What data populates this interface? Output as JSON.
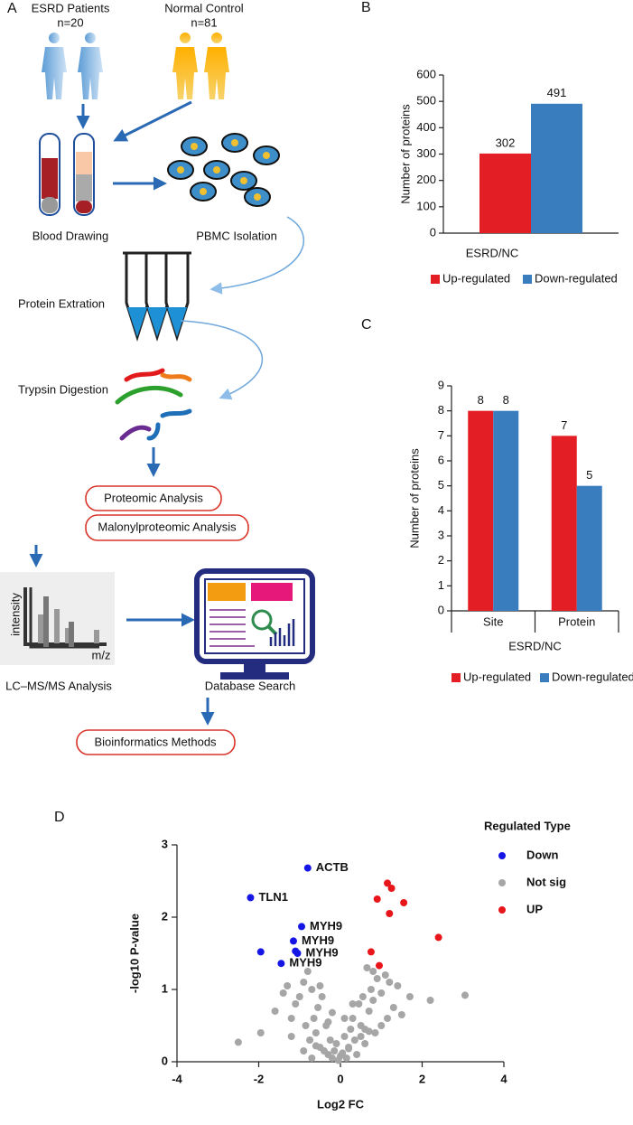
{
  "panel_labels": [
    "A",
    "B",
    "C",
    "D"
  ],
  "workflow": {
    "patients": "ESRD Patients",
    "patients_n": "n=20",
    "controls": "Normal Control",
    "controls_n": "n=81",
    "blood": "Blood Drawing",
    "pbmc": "PBMC Isolation",
    "extraction": "Protein Extration",
    "trypsin": "Trypsin Digestion",
    "proteomic": "Proteomic Analysis",
    "malonyl": "Malonylproteomic Analysis",
    "intensity": "intensity",
    "mz": "m/z",
    "lcms": "LC–MS/MS Analysis",
    "database": "Database Search",
    "bioinformatics": "Bioinformatics Methods"
  },
  "chart_data": [
    {
      "type": "bar",
      "ylabel": "Number of proteins",
      "categories": [
        "ESRD/NC"
      ],
      "series": [
        {
          "name": "Up-regulated",
          "color": "#e31e24",
          "values": [
            302
          ]
        },
        {
          "name": "Down-regulated",
          "color": "#3a7dbf",
          "values": [
            491
          ]
        }
      ],
      "ylim": [
        0,
        600
      ],
      "yticks": [
        0,
        100,
        200,
        300,
        400,
        500,
        600
      ]
    },
    {
      "type": "bar",
      "ylabel": "Number of proteins",
      "xlabel": "ESRD/NC",
      "categories": [
        "Site",
        "Protein"
      ],
      "series": [
        {
          "name": "Up-regulated",
          "color": "#e31e24",
          "values": [
            8,
            7
          ]
        },
        {
          "name": "Down-regulated",
          "color": "#3a7dbf",
          "values": [
            8,
            5
          ]
        }
      ],
      "ylim": [
        0,
        9
      ],
      "yticks": [
        0,
        1,
        2,
        3,
        4,
        5,
        6,
        7,
        8,
        9
      ]
    },
    {
      "type": "scatter",
      "xlabel": "Log2 FC",
      "ylabel": "-log10 P-value",
      "legend_title": "Regulated Type",
      "xlim": [
        -4,
        4
      ],
      "xticks": [
        -4,
        -2,
        0,
        2,
        4
      ],
      "ylim": [
        0,
        3
      ],
      "yticks": [
        0,
        1,
        2,
        3
      ],
      "series": [
        {
          "name": "Down",
          "color": "#1515e6",
          "x": [
            -0.8,
            -2.2,
            -0.95,
            -1.15,
            -1.05,
            -1.45,
            -1.95,
            -1.1
          ],
          "values": [
            2.68,
            2.27,
            1.87,
            1.67,
            1.5,
            1.36,
            1.52,
            1.53
          ],
          "labels": [
            "ACTB",
            "TLN1",
            "MYH9",
            "MYH9",
            "MYH9",
            "MYH9",
            null,
            null
          ]
        },
        {
          "name": "Not sig",
          "color": "#a6a6a6",
          "x": [
            -2.5,
            -1.95,
            -1.6,
            -1.4,
            -1.3,
            -1.2,
            -1.1,
            -1.0,
            -0.9,
            -0.85,
            -0.8,
            -0.75,
            -0.7,
            -0.65,
            -0.6,
            -0.55,
            -0.5,
            -0.45,
            -0.4,
            -0.35,
            -0.3,
            -0.25,
            -0.2,
            -0.15,
            -0.1,
            -0.05,
            0,
            0.05,
            0.1,
            0.15,
            0.2,
            0.25,
            0.3,
            0.35,
            0.4,
            0.45,
            0.5,
            0.55,
            0.6,
            0.65,
            0.7,
            0.75,
            0.8,
            0.85,
            0.9,
            1.0,
            1.1,
            1.2,
            1.3,
            1.5,
            1.7,
            2.2,
            3.05,
            -0.7,
            -0.3,
            0.1,
            0.3,
            0.5,
            -0.5,
            -0.9,
            0.6,
            0.8,
            1.0,
            1.15,
            -0.2,
            0.2,
            -1.2,
            0.7,
            1.4,
            -0.6
          ],
          "values": [
            0.27,
            0.4,
            0.7,
            0.95,
            1.05,
            0.6,
            0.8,
            0.9,
            1.1,
            0.5,
            1.25,
            0.3,
            1.0,
            0.6,
            0.4,
            0.75,
            0.2,
            0.9,
            0.15,
            0.5,
            0.1,
            0.3,
            0.05,
            0.15,
            0.25,
            0.02,
            0.08,
            0.12,
            0.35,
            0.05,
            0.2,
            0.45,
            0.6,
            0.3,
            0.1,
            0.8,
            0.5,
            0.9,
            0.25,
            1.3,
            0.7,
            1.0,
            0.85,
            0.4,
            1.15,
            0.95,
            1.2,
            1.1,
            0.75,
            0.65,
            0.9,
            0.85,
            0.92,
            0.05,
            0.55,
            0.6,
            0.8,
            0.35,
            1.05,
            0.15,
            0.45,
            1.25,
            0.5,
            0.6,
            0.68,
            0.18,
            0.35,
            0.42,
            1.05,
            0.22
          ]
        },
        {
          "name": "UP",
          "color": "#e8161b",
          "x": [
            1.15,
            1.25,
            0.9,
            1.55,
            1.2,
            2.4,
            0.75,
            0.95
          ],
          "values": [
            2.47,
            2.4,
            2.25,
            2.2,
            2.05,
            1.72,
            1.52,
            1.33
          ]
        }
      ]
    }
  ]
}
